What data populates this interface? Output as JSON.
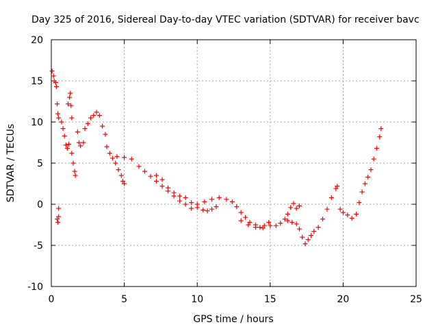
{
  "chart_data": {
    "type": "scatter",
    "title": "Day 325 of 2016, Sidereal Day-to-day VTEC variation (SDTVAR) for receiver bavc",
    "xlabel": "GPS time / hours",
    "ylabel": "SDTVAR / TECUs",
    "xlim": [
      0,
      25
    ],
    "ylim": [
      -10,
      20
    ],
    "xticks": [
      0,
      5,
      10,
      15,
      20,
      25
    ],
    "yticks": [
      -10,
      -5,
      0,
      5,
      10,
      15,
      20
    ],
    "grid": true,
    "marker": "+",
    "color": "#ff0000",
    "series": [
      {
        "name": "bavc",
        "points": [
          [
            0.05,
            16.2
          ],
          [
            0.15,
            15.6
          ],
          [
            0.2,
            15.0
          ],
          [
            0.3,
            14.8
          ],
          [
            0.35,
            14.3
          ],
          [
            0.4,
            12.2
          ],
          [
            0.45,
            11.0
          ],
          [
            0.5,
            10.5
          ],
          [
            0.4,
            -1.8
          ],
          [
            0.45,
            -2.2
          ],
          [
            0.5,
            -1.5
          ],
          [
            0.5,
            -0.5
          ],
          [
            0.7,
            10.0
          ],
          [
            0.8,
            9.2
          ],
          [
            0.9,
            8.3
          ],
          [
            1.0,
            7.2
          ],
          [
            1.1,
            6.8
          ],
          [
            1.2,
            7.3
          ],
          [
            1.15,
            12.2
          ],
          [
            1.25,
            13.0
          ],
          [
            1.3,
            13.5
          ],
          [
            1.35,
            12.0
          ],
          [
            1.4,
            10.5
          ],
          [
            1.4,
            6.2
          ],
          [
            1.5,
            5.0
          ],
          [
            1.6,
            4.0
          ],
          [
            1.65,
            3.5
          ],
          [
            1.8,
            8.8
          ],
          [
            1.9,
            7.5
          ],
          [
            2.0,
            7.1
          ],
          [
            2.2,
            7.5
          ],
          [
            2.3,
            9.2
          ],
          [
            2.5,
            9.8
          ],
          [
            2.7,
            10.5
          ],
          [
            2.9,
            10.8
          ],
          [
            3.1,
            11.2
          ],
          [
            3.3,
            10.8
          ],
          [
            3.5,
            9.5
          ],
          [
            3.7,
            8.5
          ],
          [
            3.8,
            7.0
          ],
          [
            4.0,
            6.2
          ],
          [
            4.2,
            5.6
          ],
          [
            4.4,
            5.0
          ],
          [
            4.6,
            4.2
          ],
          [
            4.8,
            3.5
          ],
          [
            4.9,
            2.8
          ],
          [
            5.0,
            2.5
          ],
          [
            4.5,
            5.8
          ],
          [
            5.0,
            5.7
          ],
          [
            5.5,
            5.5
          ],
          [
            6.0,
            4.6
          ],
          [
            6.4,
            4.0
          ],
          [
            6.8,
            3.4
          ],
          [
            7.2,
            2.8
          ],
          [
            7.6,
            2.2
          ],
          [
            8.0,
            1.6
          ],
          [
            8.4,
            1.0
          ],
          [
            8.8,
            0.4
          ],
          [
            9.2,
            0.0
          ],
          [
            9.6,
            -0.5
          ],
          [
            10.0,
            -0.4
          ],
          [
            10.4,
            -0.7
          ],
          [
            10.7,
            -0.8
          ],
          [
            11.0,
            -0.6
          ],
          [
            11.3,
            -0.3
          ],
          [
            7.2,
            3.5
          ],
          [
            7.6,
            3.0
          ],
          [
            8.0,
            2.0
          ],
          [
            8.4,
            1.4
          ],
          [
            8.8,
            1.0
          ],
          [
            9.2,
            0.8
          ],
          [
            9.6,
            0.2
          ],
          [
            10.0,
            0.0
          ],
          [
            10.5,
            0.3
          ],
          [
            11.0,
            0.6
          ],
          [
            11.5,
            0.8
          ],
          [
            12.0,
            0.6
          ],
          [
            12.4,
            0.3
          ],
          [
            12.7,
            -0.3
          ],
          [
            13.0,
            -1.0
          ],
          [
            13.3,
            -1.6
          ],
          [
            13.6,
            -2.2
          ],
          [
            14.0,
            -2.5
          ],
          [
            14.3,
            -2.8
          ],
          [
            14.6,
            -2.6
          ],
          [
            14.9,
            -2.2
          ],
          [
            13.0,
            -2.0
          ],
          [
            13.5,
            -2.5
          ],
          [
            14.0,
            -2.8
          ],
          [
            14.5,
            -2.9
          ],
          [
            15.0,
            -2.6
          ],
          [
            15.4,
            -2.6
          ],
          [
            15.7,
            -2.3
          ],
          [
            16.0,
            -1.8
          ],
          [
            16.2,
            -1.2
          ],
          [
            16.4,
            -0.4
          ],
          [
            16.6,
            0.1
          ],
          [
            16.8,
            -0.5
          ],
          [
            17.0,
            -0.2
          ],
          [
            16.2,
            -2.0
          ],
          [
            16.5,
            -2.2
          ],
          [
            16.8,
            -2.4
          ],
          [
            17.0,
            -3.0
          ],
          [
            17.2,
            -4.0
          ],
          [
            17.4,
            -4.8
          ],
          [
            17.6,
            -4.3
          ],
          [
            17.8,
            -3.8
          ],
          [
            18.0,
            -3.3
          ],
          [
            18.3,
            -2.8
          ],
          [
            18.6,
            -1.8
          ],
          [
            18.9,
            -0.6
          ],
          [
            19.2,
            0.8
          ],
          [
            19.5,
            1.9
          ],
          [
            19.6,
            2.2
          ],
          [
            19.8,
            -0.6
          ],
          [
            20.0,
            -1.0
          ],
          [
            20.3,
            -1.3
          ],
          [
            20.6,
            -1.7
          ],
          [
            20.9,
            -1.2
          ],
          [
            21.1,
            0.2
          ],
          [
            21.3,
            1.5
          ],
          [
            21.5,
            2.5
          ],
          [
            21.7,
            3.3
          ],
          [
            21.9,
            4.2
          ],
          [
            22.1,
            5.5
          ],
          [
            22.3,
            6.8
          ],
          [
            22.5,
            8.2
          ],
          [
            22.6,
            9.2
          ]
        ]
      }
    ]
  }
}
